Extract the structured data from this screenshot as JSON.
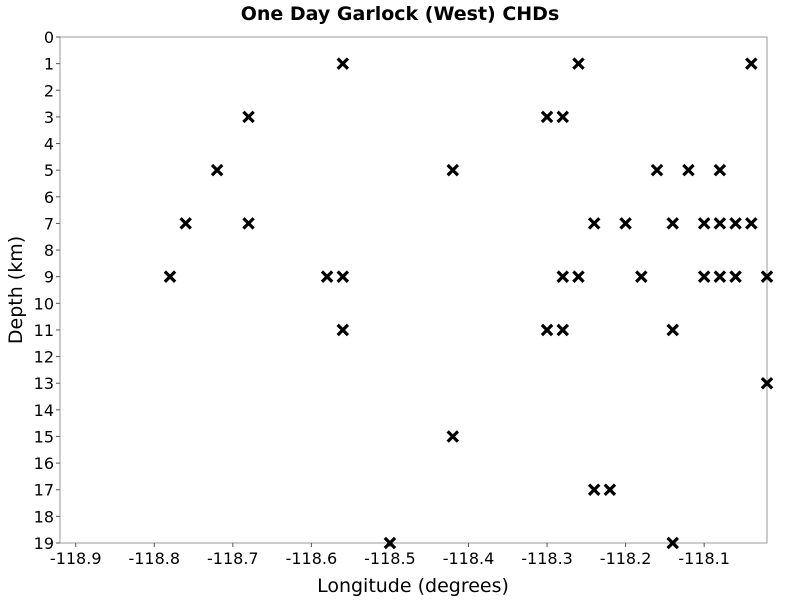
{
  "chart_data": {
    "type": "scatter",
    "title": "One Day Garlock (West) CHDs",
    "xlabel": "Longitude (degrees)",
    "ylabel": "Depth (km)",
    "xlim": [
      -118.92,
      -118.02
    ],
    "ylim": [
      0,
      19
    ],
    "y_inverted": true,
    "grid": true,
    "marker": "x",
    "marker_color": "#000000",
    "x_ticks": [
      {
        "value": -118.9,
        "label": "-118.9"
      },
      {
        "value": -118.8,
        "label": "-118.8"
      },
      {
        "value": -118.7,
        "label": "-118.7"
      },
      {
        "value": -118.6,
        "label": "-118.6"
      },
      {
        "value": -118.5,
        "label": "-118.5"
      },
      {
        "value": -118.4,
        "label": "-118.4"
      },
      {
        "value": -118.3,
        "label": "-118.3"
      },
      {
        "value": -118.2,
        "label": "-118.2"
      },
      {
        "value": -118.1,
        "label": "-118.1"
      }
    ],
    "y_ticks": [
      {
        "value": 0,
        "label": "0"
      },
      {
        "value": 1,
        "label": "1"
      },
      {
        "value": 2,
        "label": "2"
      },
      {
        "value": 3,
        "label": "3"
      },
      {
        "value": 4,
        "label": "4"
      },
      {
        "value": 5,
        "label": "5"
      },
      {
        "value": 6,
        "label": "6"
      },
      {
        "value": 7,
        "label": "7"
      },
      {
        "value": 8,
        "label": "8"
      },
      {
        "value": 9,
        "label": "9"
      },
      {
        "value": 10,
        "label": "10"
      },
      {
        "value": 11,
        "label": "11"
      },
      {
        "value": 12,
        "label": "12"
      },
      {
        "value": 13,
        "label": "13"
      },
      {
        "value": 14,
        "label": "14"
      },
      {
        "value": 15,
        "label": "15"
      },
      {
        "value": 16,
        "label": "16"
      },
      {
        "value": 17,
        "label": "17"
      },
      {
        "value": 18,
        "label": "18"
      },
      {
        "value": 19,
        "label": "19"
      }
    ],
    "points": [
      {
        "x": -118.56,
        "y": 1
      },
      {
        "x": -118.26,
        "y": 1
      },
      {
        "x": -118.04,
        "y": 1
      },
      {
        "x": -118.68,
        "y": 3
      },
      {
        "x": -118.3,
        "y": 3
      },
      {
        "x": -118.28,
        "y": 3
      },
      {
        "x": -118.72,
        "y": 5
      },
      {
        "x": -118.42,
        "y": 5
      },
      {
        "x": -118.16,
        "y": 5
      },
      {
        "x": -118.12,
        "y": 5
      },
      {
        "x": -118.08,
        "y": 5
      },
      {
        "x": -118.76,
        "y": 7
      },
      {
        "x": -118.68,
        "y": 7
      },
      {
        "x": -118.24,
        "y": 7
      },
      {
        "x": -118.2,
        "y": 7
      },
      {
        "x": -118.14,
        "y": 7
      },
      {
        "x": -118.1,
        "y": 7
      },
      {
        "x": -118.08,
        "y": 7
      },
      {
        "x": -118.06,
        "y": 7
      },
      {
        "x": -118.04,
        "y": 7
      },
      {
        "x": -118.78,
        "y": 9
      },
      {
        "x": -118.58,
        "y": 9
      },
      {
        "x": -118.56,
        "y": 9
      },
      {
        "x": -118.28,
        "y": 9
      },
      {
        "x": -118.26,
        "y": 9
      },
      {
        "x": -118.18,
        "y": 9
      },
      {
        "x": -118.1,
        "y": 9
      },
      {
        "x": -118.08,
        "y": 9
      },
      {
        "x": -118.06,
        "y": 9
      },
      {
        "x": -118.02,
        "y": 9
      },
      {
        "x": -118.56,
        "y": 11
      },
      {
        "x": -118.3,
        "y": 11
      },
      {
        "x": -118.28,
        "y": 11
      },
      {
        "x": -118.14,
        "y": 11
      },
      {
        "x": -118.02,
        "y": 13
      },
      {
        "x": -118.42,
        "y": 15
      },
      {
        "x": -118.24,
        "y": 17
      },
      {
        "x": -118.22,
        "y": 17
      },
      {
        "x": -118.5,
        "y": 19
      },
      {
        "x": -118.14,
        "y": 19
      }
    ]
  }
}
